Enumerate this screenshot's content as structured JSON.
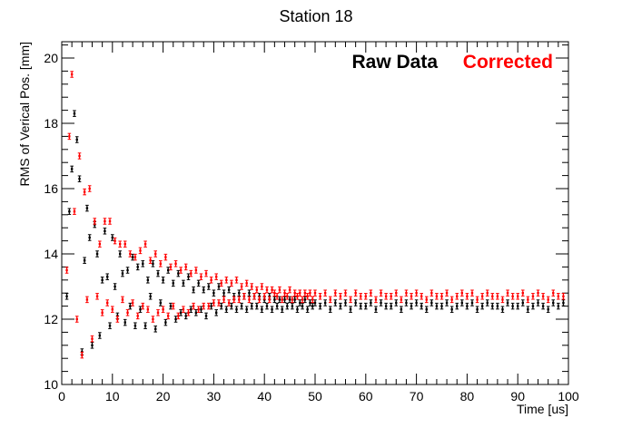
{
  "chart_data": {
    "type": "scatter",
    "title": "Station 18",
    "xlabel": "Time [us]",
    "ylabel": "RMS of Verical Pos. [mm]",
    "xlim": [
      0,
      100
    ],
    "ylim": [
      10,
      20.5
    ],
    "x_ticks": [
      0,
      10,
      20,
      30,
      40,
      50,
      60,
      70,
      80,
      90,
      100
    ],
    "y_ticks": [
      10,
      12,
      14,
      16,
      18,
      20
    ],
    "grid": false,
    "legend_position": "top-right",
    "series": [
      {
        "name": "Raw Data",
        "color": "#000000",
        "error": 0.09,
        "points": [
          [
            1.0,
            12.7
          ],
          [
            1.5,
            15.3
          ],
          [
            2.0,
            16.6
          ],
          [
            2.5,
            18.3
          ],
          [
            3.0,
            17.5
          ],
          [
            3.5,
            16.3
          ],
          [
            4.0,
            11.0
          ],
          [
            4.5,
            13.8
          ],
          [
            5.0,
            15.4
          ],
          [
            5.5,
            14.5
          ],
          [
            6.0,
            11.2
          ],
          [
            6.5,
            14.9
          ],
          [
            7.0,
            14.0
          ],
          [
            7.5,
            11.5
          ],
          [
            8.0,
            13.2
          ],
          [
            8.5,
            14.7
          ],
          [
            9.0,
            13.3
          ],
          [
            9.5,
            11.8
          ],
          [
            10.0,
            14.5
          ],
          [
            10.5,
            13.0
          ],
          [
            11.0,
            12.1
          ],
          [
            11.5,
            14.0
          ],
          [
            12.0,
            13.4
          ],
          [
            12.5,
            11.9
          ],
          [
            13.0,
            13.5
          ],
          [
            13.5,
            12.4
          ],
          [
            14.0,
            13.9
          ],
          [
            14.5,
            11.8
          ],
          [
            15.0,
            13.6
          ],
          [
            15.5,
            12.3
          ],
          [
            16.0,
            13.7
          ],
          [
            16.5,
            11.8
          ],
          [
            17.0,
            13.2
          ],
          [
            17.5,
            12.7
          ],
          [
            18.0,
            13.7
          ],
          [
            18.5,
            11.7
          ],
          [
            19.0,
            13.4
          ],
          [
            19.5,
            12.5
          ],
          [
            20.0,
            13.2
          ],
          [
            20.5,
            11.9
          ],
          [
            21.0,
            13.5
          ],
          [
            21.5,
            12.4
          ],
          [
            22.0,
            13.1
          ],
          [
            22.5,
            12.0
          ],
          [
            23.0,
            13.4
          ],
          [
            23.5,
            12.2
          ],
          [
            24.0,
            13.1
          ],
          [
            24.5,
            12.1
          ],
          [
            25.0,
            13.3
          ],
          [
            25.5,
            12.3
          ],
          [
            26.0,
            12.9
          ],
          [
            26.5,
            12.2
          ],
          [
            27.0,
            13.1
          ],
          [
            27.5,
            12.3
          ],
          [
            28.0,
            12.9
          ],
          [
            28.5,
            12.1
          ],
          [
            29.0,
            13.0
          ],
          [
            29.5,
            12.4
          ],
          [
            30.0,
            12.8
          ],
          [
            30.5,
            12.2
          ],
          [
            31.0,
            13.0
          ],
          [
            31.5,
            12.4
          ],
          [
            32.0,
            12.8
          ],
          [
            32.5,
            12.3
          ],
          [
            33.0,
            12.9
          ],
          [
            33.5,
            12.4
          ],
          [
            34.0,
            12.7
          ],
          [
            34.5,
            12.3
          ],
          [
            35.0,
            12.8
          ],
          [
            35.5,
            12.4
          ],
          [
            36.0,
            12.7
          ],
          [
            36.5,
            12.3
          ],
          [
            37.0,
            12.8
          ],
          [
            37.5,
            12.4
          ],
          [
            38.0,
            12.7
          ],
          [
            38.5,
            12.4
          ],
          [
            39.0,
            12.7
          ],
          [
            39.5,
            12.3
          ],
          [
            40.0,
            12.6
          ],
          [
            40.5,
            12.4
          ],
          [
            41.0,
            12.7
          ],
          [
            41.5,
            12.3
          ],
          [
            42.0,
            12.6
          ],
          [
            42.5,
            12.4
          ],
          [
            43.0,
            12.6
          ],
          [
            43.5,
            12.3
          ],
          [
            44.0,
            12.6
          ],
          [
            44.5,
            12.4
          ],
          [
            45.0,
            12.6
          ],
          [
            45.5,
            12.4
          ],
          [
            46.0,
            12.6
          ],
          [
            46.5,
            12.3
          ],
          [
            47.0,
            12.5
          ],
          [
            47.5,
            12.4
          ],
          [
            48.0,
            12.6
          ],
          [
            48.5,
            12.3
          ],
          [
            49.0,
            12.5
          ],
          [
            49.5,
            12.4
          ],
          [
            50.0,
            12.5
          ],
          [
            51.0,
            12.4
          ],
          [
            52.0,
            12.5
          ],
          [
            53.0,
            12.3
          ],
          [
            54.0,
            12.5
          ],
          [
            55.0,
            12.4
          ],
          [
            56.0,
            12.5
          ],
          [
            57.0,
            12.3
          ],
          [
            58.0,
            12.5
          ],
          [
            59.0,
            12.4
          ],
          [
            60.0,
            12.4
          ],
          [
            61.0,
            12.5
          ],
          [
            62.0,
            12.3
          ],
          [
            63.0,
            12.5
          ],
          [
            64.0,
            12.4
          ],
          [
            65.0,
            12.4
          ],
          [
            66.0,
            12.5
          ],
          [
            67.0,
            12.3
          ],
          [
            68.0,
            12.5
          ],
          [
            69.0,
            12.4
          ],
          [
            70.0,
            12.5
          ],
          [
            71.0,
            12.4
          ],
          [
            72.0,
            12.3
          ],
          [
            73.0,
            12.5
          ],
          [
            74.0,
            12.4
          ],
          [
            75.0,
            12.4
          ],
          [
            76.0,
            12.5
          ],
          [
            77.0,
            12.3
          ],
          [
            78.0,
            12.4
          ],
          [
            79.0,
            12.5
          ],
          [
            80.0,
            12.4
          ],
          [
            81.0,
            12.5
          ],
          [
            82.0,
            12.3
          ],
          [
            83.0,
            12.4
          ],
          [
            84.0,
            12.5
          ],
          [
            85.0,
            12.4
          ],
          [
            86.0,
            12.4
          ],
          [
            87.0,
            12.3
          ],
          [
            88.0,
            12.5
          ],
          [
            89.0,
            12.4
          ],
          [
            90.0,
            12.4
          ],
          [
            91.0,
            12.5
          ],
          [
            92.0,
            12.3
          ],
          [
            93.0,
            12.4
          ],
          [
            94.0,
            12.5
          ],
          [
            95.0,
            12.4
          ],
          [
            96.0,
            12.3
          ],
          [
            97.0,
            12.5
          ],
          [
            98.0,
            12.4
          ],
          [
            99.0,
            12.5
          ]
        ]
      },
      {
        "name": "Corrected",
        "color": "#ff0000",
        "error": 0.09,
        "points": [
          [
            1.0,
            13.5
          ],
          [
            1.5,
            17.6
          ],
          [
            2.0,
            19.5
          ],
          [
            2.5,
            15.3
          ],
          [
            3.0,
            12.0
          ],
          [
            3.5,
            17.0
          ],
          [
            4.0,
            10.9
          ],
          [
            4.5,
            15.9
          ],
          [
            5.0,
            12.6
          ],
          [
            5.5,
            16.0
          ],
          [
            6.0,
            11.4
          ],
          [
            6.5,
            15.0
          ],
          [
            7.0,
            12.7
          ],
          [
            7.5,
            14.3
          ],
          [
            8.0,
            12.2
          ],
          [
            8.5,
            15.0
          ],
          [
            9.0,
            12.5
          ],
          [
            9.5,
            15.0
          ],
          [
            10.0,
            12.3
          ],
          [
            10.5,
            14.4
          ],
          [
            11.0,
            12.0
          ],
          [
            11.5,
            14.3
          ],
          [
            12.0,
            12.6
          ],
          [
            12.5,
            14.3
          ],
          [
            13.0,
            12.2
          ],
          [
            13.5,
            14.0
          ],
          [
            14.0,
            12.5
          ],
          [
            14.5,
            13.9
          ],
          [
            15.0,
            12.1
          ],
          [
            15.5,
            14.1
          ],
          [
            16.0,
            12.4
          ],
          [
            16.5,
            14.3
          ],
          [
            17.0,
            12.3
          ],
          [
            17.5,
            13.8
          ],
          [
            18.0,
            12.0
          ],
          [
            18.5,
            14.0
          ],
          [
            19.0,
            12.2
          ],
          [
            19.5,
            13.7
          ],
          [
            20.0,
            12.3
          ],
          [
            20.5,
            13.9
          ],
          [
            21.0,
            12.1
          ],
          [
            21.5,
            13.6
          ],
          [
            22.0,
            12.4
          ],
          [
            22.5,
            13.7
          ],
          [
            23.0,
            12.1
          ],
          [
            23.5,
            13.5
          ],
          [
            24.0,
            12.3
          ],
          [
            24.5,
            13.6
          ],
          [
            25.0,
            12.2
          ],
          [
            25.5,
            13.4
          ],
          [
            26.0,
            12.4
          ],
          [
            26.5,
            13.5
          ],
          [
            27.0,
            12.3
          ],
          [
            27.5,
            13.3
          ],
          [
            28.0,
            12.4
          ],
          [
            28.5,
            13.4
          ],
          [
            29.0,
            12.4
          ],
          [
            29.5,
            13.2
          ],
          [
            30.0,
            12.5
          ],
          [
            30.5,
            13.3
          ],
          [
            31.0,
            12.5
          ],
          [
            31.5,
            13.1
          ],
          [
            32.0,
            12.6
          ],
          [
            32.5,
            13.2
          ],
          [
            33.0,
            12.5
          ],
          [
            33.5,
            13.1
          ],
          [
            34.0,
            12.6
          ],
          [
            34.5,
            13.2
          ],
          [
            35.0,
            12.6
          ],
          [
            35.5,
            13.0
          ],
          [
            36.0,
            12.7
          ],
          [
            36.5,
            13.1
          ],
          [
            37.0,
            12.6
          ],
          [
            37.5,
            13.0
          ],
          [
            38.0,
            12.7
          ],
          [
            38.5,
            12.9
          ],
          [
            39.0,
            12.6
          ],
          [
            39.5,
            13.0
          ],
          [
            40.0,
            12.7
          ],
          [
            40.5,
            12.9
          ],
          [
            41.0,
            12.6
          ],
          [
            41.5,
            12.9
          ],
          [
            42.0,
            12.8
          ],
          [
            42.5,
            12.7
          ],
          [
            43.0,
            12.9
          ],
          [
            43.5,
            12.6
          ],
          [
            44.0,
            12.8
          ],
          [
            44.5,
            12.7
          ],
          [
            45.0,
            12.9
          ],
          [
            45.5,
            12.6
          ],
          [
            46.0,
            12.8
          ],
          [
            46.5,
            12.7
          ],
          [
            47.0,
            12.8
          ],
          [
            47.5,
            12.6
          ],
          [
            48.0,
            12.8
          ],
          [
            48.5,
            12.7
          ],
          [
            49.0,
            12.8
          ],
          [
            49.5,
            12.6
          ],
          [
            50.0,
            12.8
          ],
          [
            51.0,
            12.7
          ],
          [
            52.0,
            12.8
          ],
          [
            53.0,
            12.6
          ],
          [
            54.0,
            12.8
          ],
          [
            55.0,
            12.7
          ],
          [
            56.0,
            12.8
          ],
          [
            57.0,
            12.6
          ],
          [
            58.0,
            12.8
          ],
          [
            59.0,
            12.7
          ],
          [
            60.0,
            12.7
          ],
          [
            61.0,
            12.8
          ],
          [
            62.0,
            12.6
          ],
          [
            63.0,
            12.8
          ],
          [
            64.0,
            12.7
          ],
          [
            65.0,
            12.7
          ],
          [
            66.0,
            12.8
          ],
          [
            67.0,
            12.6
          ],
          [
            68.0,
            12.8
          ],
          [
            69.0,
            12.7
          ],
          [
            70.0,
            12.8
          ],
          [
            71.0,
            12.7
          ],
          [
            72.0,
            12.6
          ],
          [
            73.0,
            12.8
          ],
          [
            74.0,
            12.7
          ],
          [
            75.0,
            12.7
          ],
          [
            76.0,
            12.8
          ],
          [
            77.0,
            12.6
          ],
          [
            78.0,
            12.7
          ],
          [
            79.0,
            12.8
          ],
          [
            80.0,
            12.7
          ],
          [
            81.0,
            12.8
          ],
          [
            82.0,
            12.6
          ],
          [
            83.0,
            12.7
          ],
          [
            84.0,
            12.8
          ],
          [
            85.0,
            12.7
          ],
          [
            86.0,
            12.7
          ],
          [
            87.0,
            12.6
          ],
          [
            88.0,
            12.8
          ],
          [
            89.0,
            12.7
          ],
          [
            90.0,
            12.7
          ],
          [
            91.0,
            12.8
          ],
          [
            92.0,
            12.6
          ],
          [
            93.0,
            12.7
          ],
          [
            94.0,
            12.8
          ],
          [
            95.0,
            12.7
          ],
          [
            96.0,
            12.6
          ],
          [
            97.0,
            12.8
          ],
          [
            98.0,
            12.7
          ],
          [
            99.0,
            12.7
          ]
        ]
      }
    ]
  }
}
